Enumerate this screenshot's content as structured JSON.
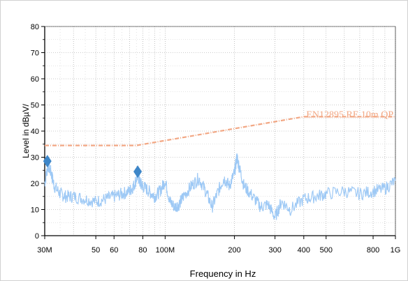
{
  "chart_data": {
    "type": "line",
    "xlabel": "Frequency in Hz",
    "ylabel": "Level in dBµV/",
    "x_scale": "log",
    "xlim": [
      30000000,
      1000000000
    ],
    "ylim": [
      0,
      80
    ],
    "grid": true,
    "x_ticks": [
      {
        "value": 30000000,
        "label": "30M"
      },
      {
        "value": 50000000,
        "label": "50"
      },
      {
        "value": 60000000,
        "label": "60"
      },
      {
        "value": 80000000,
        "label": "80"
      },
      {
        "value": 100000000,
        "label": "100M"
      },
      {
        "value": 200000000,
        "label": "200"
      },
      {
        "value": 300000000,
        "label": "300"
      },
      {
        "value": 400000000,
        "label": "400"
      },
      {
        "value": 500000000,
        "label": "500"
      },
      {
        "value": 800000000,
        "label": "800"
      },
      {
        "value": 1000000000,
        "label": "1G"
      }
    ],
    "y_ticks": [
      0,
      10,
      20,
      30,
      40,
      50,
      60,
      70,
      80
    ],
    "limit_line": {
      "label": "EN12895 RE 10m QP",
      "color": "#f2a784",
      "x": [
        30000000,
        75000000,
        400000000,
        1000000000
      ],
      "y": [
        34.5,
        34.5,
        45.5,
        45.5
      ]
    },
    "measurement": {
      "color": "#9ec9f5",
      "x": [
        30000000,
        31000000,
        32000000,
        33000000,
        35000000,
        37000000,
        40000000,
        45000000,
        50000000,
        55000000,
        60000000,
        65000000,
        70000000,
        73000000,
        76000000,
        78000000,
        80000000,
        85000000,
        90000000,
        95000000,
        100000000,
        105000000,
        110000000,
        115000000,
        120000000,
        130000000,
        140000000,
        150000000,
        160000000,
        170000000,
        180000000,
        190000000,
        200000000,
        205000000,
        210000000,
        220000000,
        240000000,
        260000000,
        280000000,
        300000000,
        320000000,
        350000000,
        400000000,
        450000000,
        500000000,
        600000000,
        700000000,
        800000000,
        900000000,
        1000000000
      ],
      "y": [
        20,
        27,
        24,
        19,
        16,
        15,
        15,
        14,
        13,
        14,
        15,
        16,
        17,
        19,
        23,
        20,
        19,
        17,
        15,
        17,
        21,
        13,
        11,
        12,
        15,
        19,
        22,
        17,
        11,
        17,
        22,
        19,
        24,
        30,
        26,
        19,
        15,
        11,
        12,
        7,
        13,
        10,
        14,
        15,
        16,
        17,
        16,
        17,
        18,
        21
      ]
    },
    "markers": [
      {
        "x": 30800000,
        "y": 28.5,
        "color": "#3d86c8"
      },
      {
        "x": 76000000,
        "y": 24.5,
        "color": "#3d86c8"
      }
    ]
  }
}
